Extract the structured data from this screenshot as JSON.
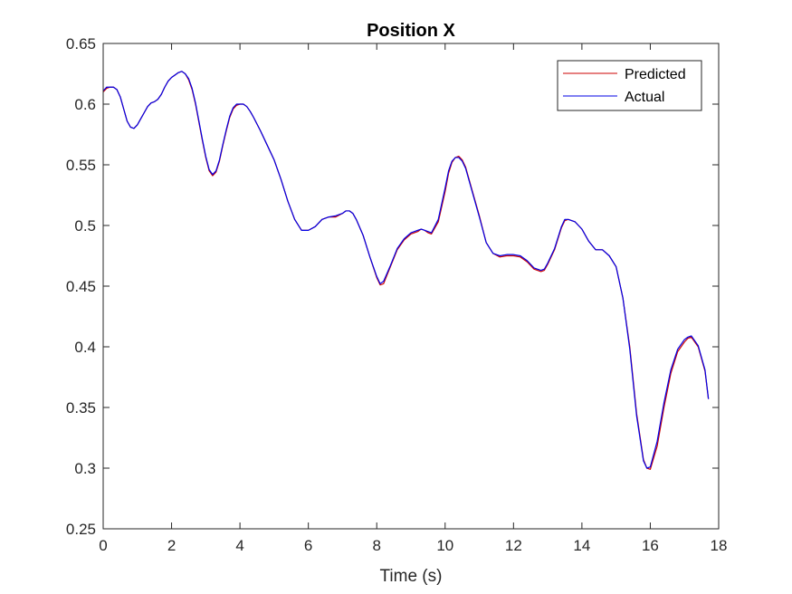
{
  "chart_data": {
    "type": "line",
    "title": "Position X",
    "xlabel": "Time (s)",
    "ylabel": "",
    "xlim": [
      0,
      18
    ],
    "ylim": [
      0.25,
      0.65
    ],
    "xticks": [
      0,
      2,
      4,
      6,
      8,
      10,
      12,
      14,
      16,
      18
    ],
    "yticks": [
      0.25,
      0.3,
      0.35,
      0.4,
      0.45,
      0.5,
      0.55,
      0.6,
      0.65
    ],
    "xtick_labels": [
      "0",
      "2",
      "4",
      "6",
      "8",
      "10",
      "12",
      "14",
      "16",
      "18"
    ],
    "ytick_labels": [
      "0.25",
      "0.3",
      "0.35",
      "0.4",
      "0.45",
      "0.5",
      "0.55",
      "0.6",
      "0.65"
    ],
    "grid": false,
    "legend_position": "top-right",
    "series": [
      {
        "name": "Predicted",
        "color": "#cc0000",
        "x": [
          0,
          0.1,
          0.2,
          0.3,
          0.4,
          0.5,
          0.6,
          0.7,
          0.8,
          0.9,
          1.0,
          1.1,
          1.2,
          1.3,
          1.4,
          1.5,
          1.6,
          1.7,
          1.8,
          1.9,
          2.0,
          2.1,
          2.2,
          2.3,
          2.4,
          2.5,
          2.6,
          2.7,
          2.8,
          2.9,
          3.0,
          3.1,
          3.2,
          3.3,
          3.4,
          3.5,
          3.6,
          3.7,
          3.8,
          3.9,
          4.0,
          4.1,
          4.2,
          4.3,
          4.4,
          4.6,
          4.8,
          5.0,
          5.2,
          5.4,
          5.6,
          5.8,
          6.0,
          6.2,
          6.4,
          6.6,
          6.8,
          7.0,
          7.1,
          7.2,
          7.3,
          7.4,
          7.6,
          7.8,
          8.0,
          8.1,
          8.2,
          8.4,
          8.6,
          8.8,
          9.0,
          9.2,
          9.3,
          9.4,
          9.5,
          9.6,
          9.8,
          10.0,
          10.1,
          10.2,
          10.3,
          10.4,
          10.5,
          10.6,
          10.8,
          11.0,
          11.2,
          11.4,
          11.6,
          11.8,
          12.0,
          12.2,
          12.4,
          12.6,
          12.8,
          12.9,
          13.0,
          13.2,
          13.4,
          13.5,
          13.6,
          13.8,
          14.0,
          14.2,
          14.4,
          14.6,
          14.8,
          15.0,
          15.2,
          15.4,
          15.6,
          15.8,
          15.9,
          16.0,
          16.2,
          16.4,
          16.6,
          16.8,
          17.0,
          17.1,
          17.2,
          17.4,
          17.6,
          17.7
        ],
        "y": [
          0.61,
          0.613,
          0.614,
          0.614,
          0.612,
          0.606,
          0.596,
          0.586,
          0.581,
          0.58,
          0.583,
          0.588,
          0.593,
          0.598,
          0.601,
          0.602,
          0.604,
          0.608,
          0.614,
          0.619,
          0.622,
          0.624,
          0.626,
          0.627,
          0.625,
          0.62,
          0.612,
          0.6,
          0.585,
          0.57,
          0.556,
          0.545,
          0.541,
          0.544,
          0.553,
          0.566,
          0.578,
          0.589,
          0.596,
          0.599,
          0.6,
          0.6,
          0.598,
          0.594,
          0.589,
          0.578,
          0.566,
          0.554,
          0.538,
          0.52,
          0.505,
          0.496,
          0.496,
          0.499,
          0.505,
          0.507,
          0.507,
          0.51,
          0.512,
          0.512,
          0.51,
          0.505,
          0.492,
          0.474,
          0.457,
          0.451,
          0.452,
          0.466,
          0.48,
          0.488,
          0.493,
          0.495,
          0.497,
          0.496,
          0.494,
          0.493,
          0.503,
          0.528,
          0.543,
          0.552,
          0.556,
          0.557,
          0.554,
          0.548,
          0.528,
          0.508,
          0.486,
          0.477,
          0.474,
          0.475,
          0.475,
          0.474,
          0.47,
          0.464,
          0.462,
          0.463,
          0.468,
          0.48,
          0.498,
          0.504,
          0.505,
          0.503,
          0.497,
          0.487,
          0.48,
          0.48,
          0.475,
          0.466,
          0.44,
          0.4,
          0.345,
          0.307,
          0.3,
          0.299,
          0.318,
          0.35,
          0.378,
          0.396,
          0.404,
          0.407,
          0.408,
          0.4,
          0.38,
          0.357
        ]
      },
      {
        "name": "Actual",
        "color": "#0000e6",
        "x": [
          0,
          0.1,
          0.2,
          0.3,
          0.4,
          0.5,
          0.6,
          0.7,
          0.8,
          0.9,
          1.0,
          1.1,
          1.2,
          1.3,
          1.4,
          1.5,
          1.6,
          1.7,
          1.8,
          1.9,
          2.0,
          2.1,
          2.2,
          2.3,
          2.4,
          2.5,
          2.6,
          2.7,
          2.8,
          2.9,
          3.0,
          3.1,
          3.2,
          3.3,
          3.4,
          3.5,
          3.6,
          3.7,
          3.8,
          3.9,
          4.0,
          4.1,
          4.2,
          4.3,
          4.4,
          4.6,
          4.8,
          5.0,
          5.2,
          5.4,
          5.6,
          5.8,
          6.0,
          6.2,
          6.4,
          6.6,
          6.8,
          7.0,
          7.1,
          7.2,
          7.3,
          7.4,
          7.6,
          7.8,
          8.0,
          8.1,
          8.2,
          8.4,
          8.6,
          8.8,
          9.0,
          9.2,
          9.3,
          9.4,
          9.5,
          9.6,
          9.8,
          10.0,
          10.1,
          10.2,
          10.3,
          10.4,
          10.5,
          10.6,
          10.8,
          11.0,
          11.2,
          11.4,
          11.6,
          11.8,
          12.0,
          12.2,
          12.4,
          12.6,
          12.8,
          12.9,
          13.0,
          13.2,
          13.4,
          13.5,
          13.6,
          13.8,
          14.0,
          14.2,
          14.4,
          14.6,
          14.8,
          15.0,
          15.2,
          15.4,
          15.6,
          15.8,
          15.9,
          16.0,
          16.2,
          16.4,
          16.6,
          16.8,
          17.0,
          17.1,
          17.2,
          17.4,
          17.6,
          17.7
        ],
        "y": [
          0.611,
          0.614,
          0.614,
          0.614,
          0.612,
          0.606,
          0.596,
          0.586,
          0.581,
          0.58,
          0.583,
          0.588,
          0.593,
          0.598,
          0.601,
          0.602,
          0.604,
          0.608,
          0.614,
          0.619,
          0.622,
          0.624,
          0.626,
          0.627,
          0.625,
          0.621,
          0.613,
          0.601,
          0.586,
          0.571,
          0.557,
          0.546,
          0.542,
          0.545,
          0.554,
          0.567,
          0.579,
          0.59,
          0.597,
          0.6,
          0.6,
          0.6,
          0.598,
          0.594,
          0.589,
          0.578,
          0.566,
          0.554,
          0.538,
          0.52,
          0.505,
          0.496,
          0.496,
          0.499,
          0.505,
          0.507,
          0.508,
          0.51,
          0.512,
          0.512,
          0.51,
          0.505,
          0.492,
          0.474,
          0.458,
          0.452,
          0.454,
          0.467,
          0.481,
          0.489,
          0.494,
          0.496,
          0.497,
          0.496,
          0.495,
          0.494,
          0.505,
          0.531,
          0.545,
          0.553,
          0.556,
          0.556,
          0.553,
          0.547,
          0.527,
          0.507,
          0.486,
          0.477,
          0.475,
          0.476,
          0.476,
          0.475,
          0.471,
          0.465,
          0.463,
          0.464,
          0.469,
          0.481,
          0.499,
          0.505,
          0.505,
          0.503,
          0.497,
          0.487,
          0.48,
          0.48,
          0.475,
          0.466,
          0.44,
          0.398,
          0.343,
          0.306,
          0.3,
          0.301,
          0.322,
          0.354,
          0.381,
          0.398,
          0.406,
          0.408,
          0.409,
          0.401,
          0.381,
          0.357
        ]
      }
    ]
  }
}
